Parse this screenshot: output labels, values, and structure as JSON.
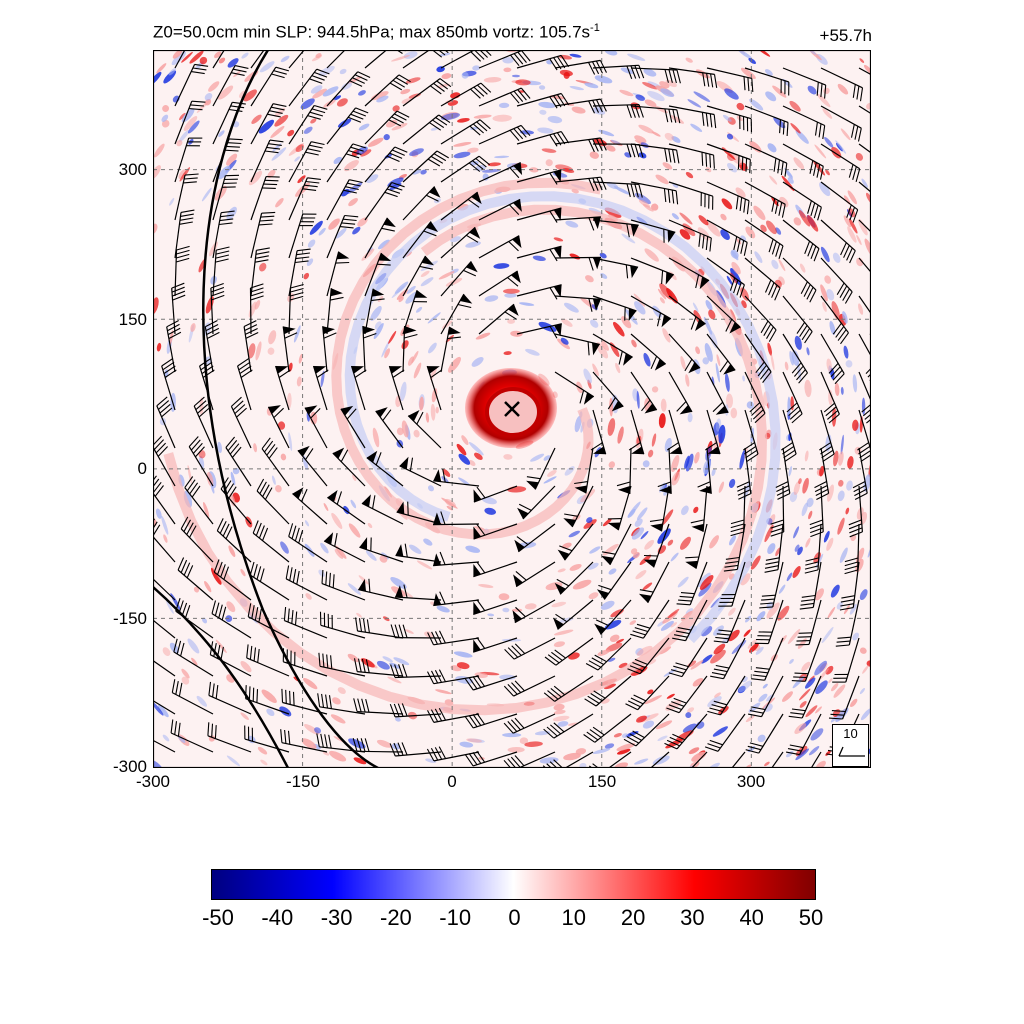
{
  "title": {
    "main": "Z0=50.0cm  min SLP: 944.5hPa; max 850mb vortz: 105.7s",
    "exponent": "-1",
    "time": "+55.7h"
  },
  "reference_barb": {
    "label": "10"
  },
  "colorbar": {
    "ticks": [
      "-50",
      "-40",
      "-30",
      "-20",
      "-10",
      "0",
      "10",
      "20",
      "30",
      "40",
      "50"
    ],
    "colors": [
      "#000080",
      "#0000ff",
      "#ffffff",
      "#ff0000",
      "#800000"
    ]
  },
  "chart_data": {
    "type": "heatmap",
    "title": "Z0=50.0cm  min SLP: 944.5hPa; max 850mb vortz: 105.7s-1",
    "x_ticks": [
      "-300",
      "-150",
      "0",
      "150",
      "300"
    ],
    "y_ticks": [
      "300",
      "150",
      "0",
      "-150",
      "-300"
    ],
    "xlim": [
      -300,
      420
    ],
    "ylim": [
      -300,
      420
    ],
    "grid": true,
    "color_range": [
      -50,
      50
    ],
    "storm_center": {
      "x": 60,
      "y": 60
    },
    "eyewall_max": 50,
    "min_slp_hpa": 944.5,
    "max_vorticity": 105.7,
    "forecast_hour": "+55.7h"
  }
}
